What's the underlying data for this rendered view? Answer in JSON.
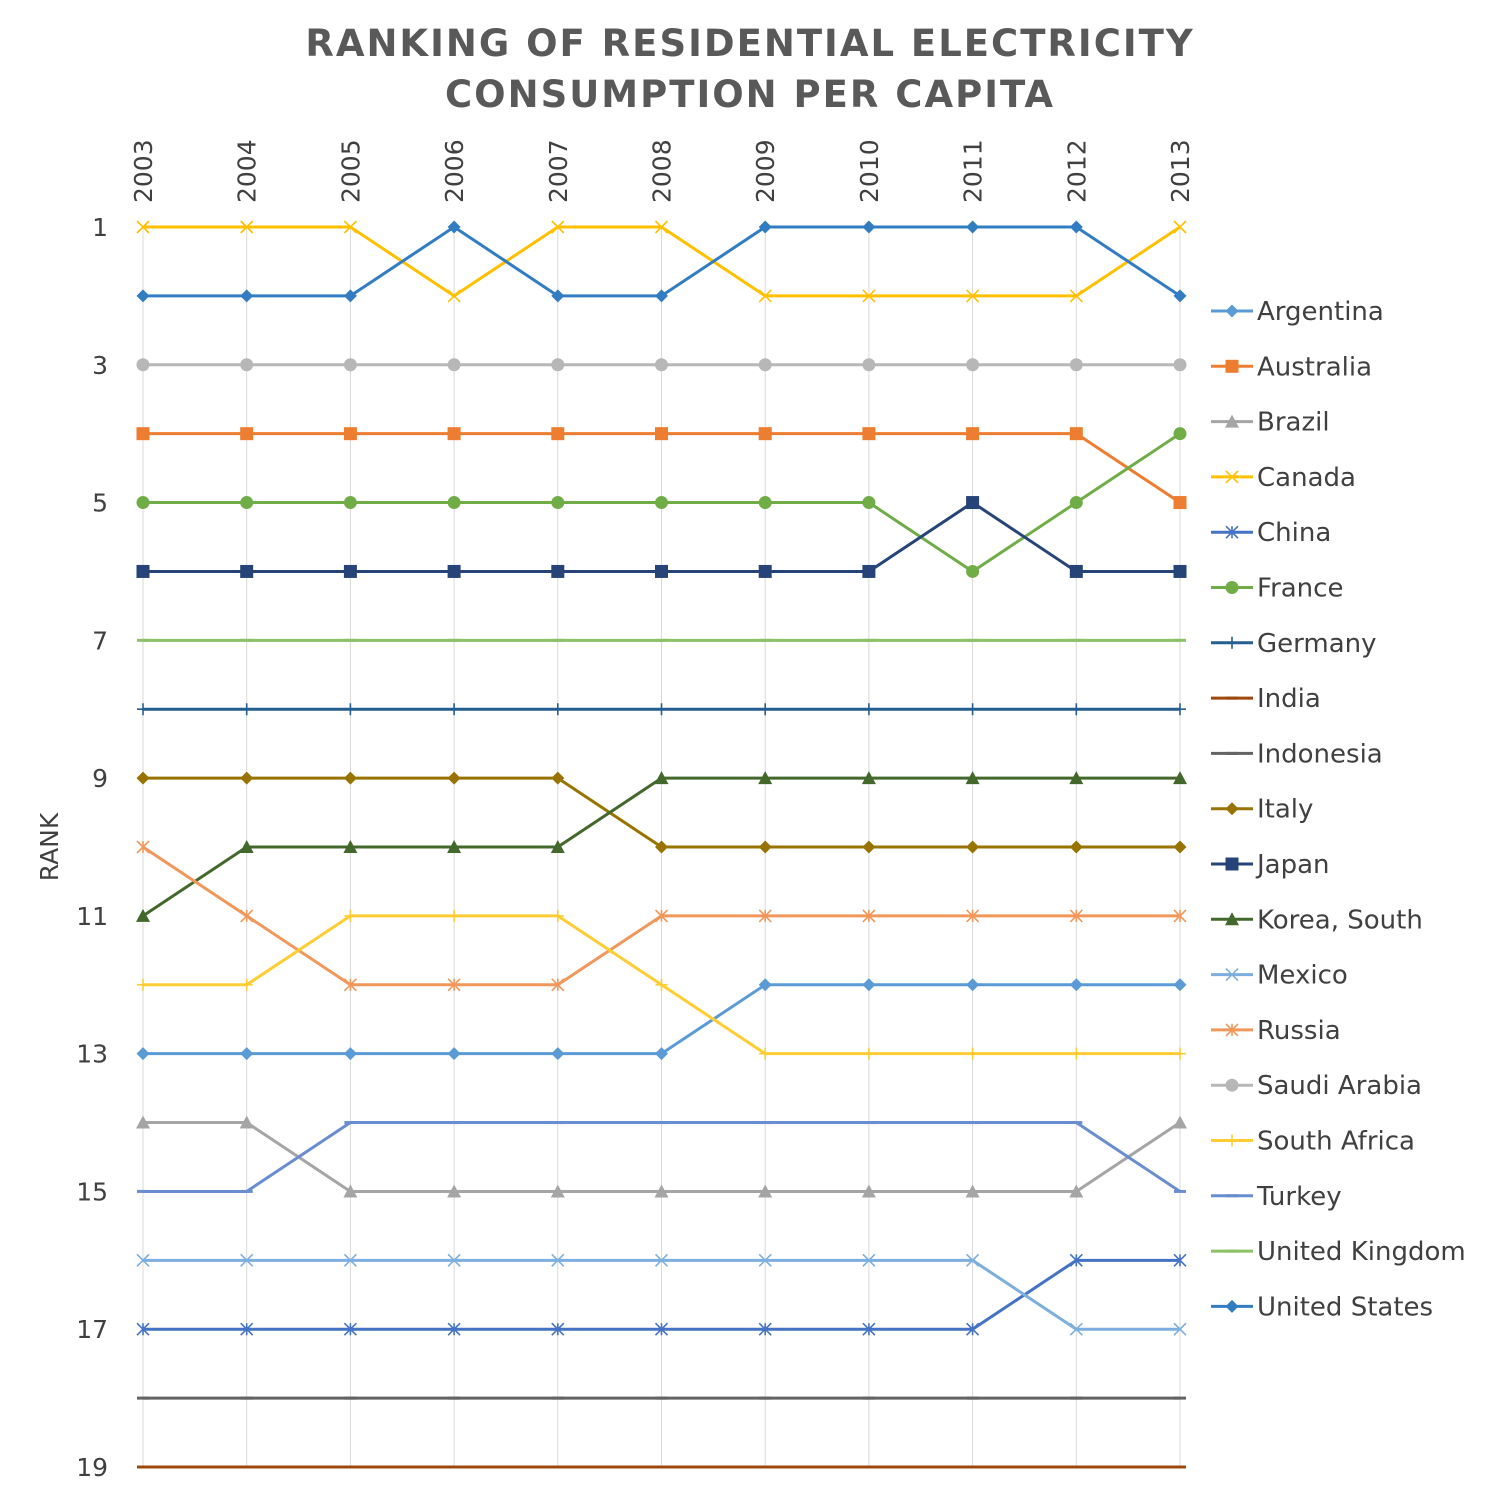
{
  "chart_data": {
    "type": "line",
    "title_lines": [
      "RANKING OF RESIDENTIAL ELECTRICITY",
      "CONSUMPTION PER CAPITA"
    ],
    "ylabel": "RANK",
    "xlabel": "",
    "x": [
      "2003",
      "2004",
      "2005",
      "2006",
      "2007",
      "2008",
      "2009",
      "2010",
      "2011",
      "2012",
      "2013"
    ],
    "y_ticks": [
      "1",
      "3",
      "5",
      "7",
      "9",
      "11",
      "13",
      "15",
      "17",
      "19"
    ],
    "y_tick_values": [
      1,
      3,
      5,
      7,
      9,
      11,
      13,
      15,
      17,
      19
    ],
    "ylim": [
      1,
      19
    ],
    "y_inverted": true,
    "x_axis_position": "top",
    "grid": "vertical",
    "legend_position": "right",
    "series": [
      {
        "name": "Argentina",
        "color": "#5B9BD5",
        "marker": "diamond",
        "values": [
          13,
          13,
          13,
          13,
          13,
          13,
          12,
          12,
          12,
          12,
          12
        ]
      },
      {
        "name": "Australia",
        "color": "#ED7D31",
        "marker": "square",
        "values": [
          4,
          4,
          4,
          4,
          4,
          4,
          4,
          4,
          4,
          4,
          5
        ]
      },
      {
        "name": "Brazil",
        "color": "#A5A5A5",
        "marker": "triangle",
        "values": [
          14,
          14,
          15,
          15,
          15,
          15,
          15,
          15,
          15,
          15,
          14
        ]
      },
      {
        "name": "Canada",
        "color": "#FFC000",
        "marker": "x",
        "values": [
          1,
          1,
          1,
          2,
          1,
          1,
          2,
          2,
          2,
          2,
          1
        ]
      },
      {
        "name": "China",
        "color": "#4472C4",
        "marker": "star",
        "values": [
          17,
          17,
          17,
          17,
          17,
          17,
          17,
          17,
          17,
          16,
          16
        ]
      },
      {
        "name": "France",
        "color": "#70AD47",
        "marker": "circle",
        "values": [
          5,
          5,
          5,
          5,
          5,
          5,
          5,
          5,
          6,
          5,
          4
        ]
      },
      {
        "name": "Germany",
        "color": "#255E91",
        "marker": "plus",
        "values": [
          8,
          8,
          8,
          8,
          8,
          8,
          8,
          8,
          8,
          8,
          8
        ]
      },
      {
        "name": "India",
        "color": "#9E480E",
        "marker": "dash",
        "values": [
          19,
          19,
          19,
          19,
          19,
          19,
          19,
          19,
          19,
          19,
          19
        ]
      },
      {
        "name": "Indonesia",
        "color": "#636363",
        "marker": "dash",
        "values": [
          18,
          18,
          18,
          18,
          18,
          18,
          18,
          18,
          18,
          18,
          18
        ]
      },
      {
        "name": "Italy",
        "color": "#997300",
        "marker": "diamond",
        "values": [
          9,
          9,
          9,
          9,
          9,
          10,
          10,
          10,
          10,
          10,
          10
        ]
      },
      {
        "name": "Japan",
        "color": "#264478",
        "marker": "square",
        "values": [
          6,
          6,
          6,
          6,
          6,
          6,
          6,
          6,
          5,
          6,
          6
        ]
      },
      {
        "name": "Korea, South",
        "color": "#43682B",
        "marker": "triangle",
        "values": [
          11,
          10,
          10,
          10,
          10,
          9,
          9,
          9,
          9,
          9,
          9
        ]
      },
      {
        "name": "Mexico",
        "color": "#7CAFDD",
        "marker": "x",
        "values": [
          16,
          16,
          16,
          16,
          16,
          16,
          16,
          16,
          16,
          17,
          17
        ]
      },
      {
        "name": "Russia",
        "color": "#F1975A",
        "marker": "star",
        "values": [
          10,
          11,
          12,
          12,
          12,
          11,
          11,
          11,
          11,
          11,
          11
        ]
      },
      {
        "name": "Saudi Arabia",
        "color": "#B7B7B7",
        "marker": "circle",
        "values": [
          3,
          3,
          3,
          3,
          3,
          3,
          3,
          3,
          3,
          3,
          3
        ]
      },
      {
        "name": "South Africa",
        "color": "#FFCD33",
        "marker": "plus",
        "values": [
          12,
          12,
          11,
          11,
          11,
          12,
          13,
          13,
          13,
          13,
          13
        ]
      },
      {
        "name": "Turkey",
        "color": "#698ED0",
        "marker": "dash",
        "values": [
          15,
          15,
          14,
          14,
          14,
          14,
          14,
          14,
          14,
          14,
          15
        ]
      },
      {
        "name": "United Kingdom",
        "color": "#8CC168",
        "marker": "dash",
        "values": [
          7,
          7,
          7,
          7,
          7,
          7,
          7,
          7,
          7,
          7,
          7
        ]
      },
      {
        "name": "United States",
        "color": "#327DC2",
        "marker": "diamond",
        "values": [
          2,
          2,
          2,
          1,
          2,
          2,
          1,
          1,
          1,
          1,
          2
        ]
      }
    ]
  }
}
